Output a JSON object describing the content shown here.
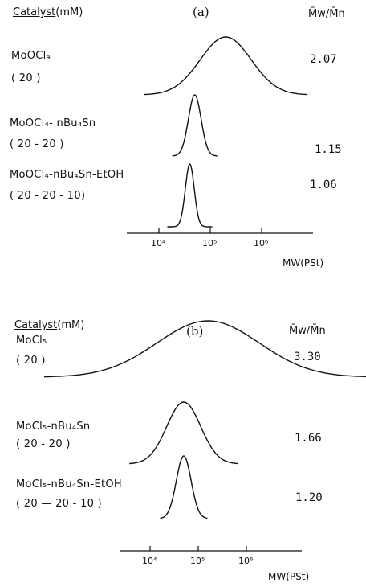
{
  "panels": [
    {
      "label": "(a)",
      "header": {
        "catalyst": "Catalyst",
        "unit": "(mM)",
        "dispersity": "M̄w/M̄n"
      },
      "rows": [
        {
          "catalyst": "MoOCl₄",
          "ratio": "( 20 )",
          "dispersity": "2.07"
        },
        {
          "catalyst": "MoOCl₄- nBu₄Sn",
          "ratio": "( 20  -  20 )",
          "dispersity": "1.15"
        },
        {
          "catalyst": "MoOCl₄-nBu₄Sn-EtOH",
          "ratio": "( 20  -   20  -  10)",
          "dispersity": "1.06"
        }
      ],
      "axis": {
        "label": "MW(PSt)",
        "ticks": [
          "10⁴",
          "10⁵",
          "10⁶"
        ]
      }
    },
    {
      "label": "(b)",
      "header": {
        "catalyst": "Catalyst",
        "unit": "(mM)",
        "dispersity": "M̄w/M̄n"
      },
      "rows": [
        {
          "catalyst": "MoCl₅",
          "ratio": "( 20 )",
          "dispersity": "3.30"
        },
        {
          "catalyst": "MoCl₅-nBu₄Sn",
          "ratio": "( 20 - 20 )",
          "dispersity": "1.66"
        },
        {
          "catalyst": "MoCl₅-nBu₄Sn-EtOH",
          "ratio": "( 20 — 20  - 10 )",
          "dispersity": "1.20"
        }
      ],
      "axis": {
        "label": "MW(PSt)",
        "ticks": [
          "10⁴",
          "10⁵",
          "10⁶"
        ]
      }
    }
  ],
  "chart_data": [
    {
      "type": "line",
      "panel": "(a)",
      "x_scale": "log",
      "xlabel": "MW(PSt)",
      "xlim": [
        3000,
        2000000
      ],
      "xticks": [
        10000,
        100000,
        1000000
      ],
      "series": [
        {
          "name": "MoOCl₄",
          "peak_mw": 200000,
          "dispersity": 2.07
        },
        {
          "name": "MoOCl₄- nBu₄Sn",
          "peak_mw": 50000,
          "dispersity": 1.15
        },
        {
          "name": "MoOCl₄-nBu₄Sn-EtOH",
          "peak_mw": 40000,
          "dispersity": 1.06
        }
      ]
    },
    {
      "type": "line",
      "panel": "(b)",
      "x_scale": "log",
      "xlabel": "MW(PSt)",
      "xlim": [
        3000,
        2000000
      ],
      "xticks": [
        10000,
        100000,
        1000000
      ],
      "series": [
        {
          "name": "MoCl₅",
          "peak_mw": 160000,
          "dispersity": 3.3
        },
        {
          "name": "MoCl₅-nBu₄Sn",
          "peak_mw": 50000,
          "dispersity": 1.66
        },
        {
          "name": "MoCl₅-nBu₄Sn-EtOH",
          "peak_mw": 50000,
          "dispersity": 1.2
        }
      ]
    }
  ]
}
